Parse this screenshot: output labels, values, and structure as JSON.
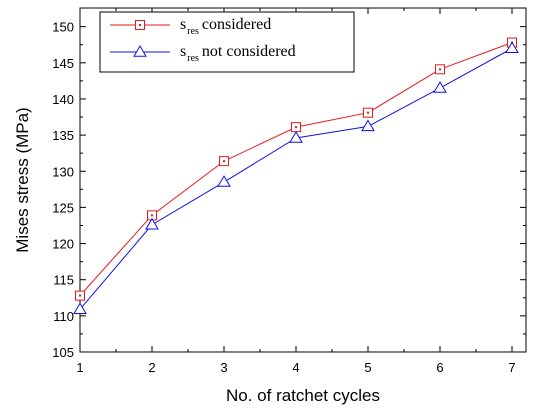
{
  "chart_data": {
    "type": "line",
    "xlabel": "No. of ratchet cycles",
    "ylabel": "Mises stress (MPa)",
    "xlim": [
      1,
      7
    ],
    "ylim": [
      105,
      152
    ],
    "x_ticks": [
      1,
      2,
      3,
      4,
      5,
      6,
      7
    ],
    "y_ticks": [
      105,
      110,
      115,
      120,
      125,
      130,
      135,
      140,
      145,
      150
    ],
    "grid": false,
    "legend_position": "top-left",
    "series": [
      {
        "name": "considered",
        "name_symbol": "s",
        "name_subscript": "res",
        "color": "#e8191b",
        "marker": "square",
        "x": [
          1,
          2,
          3,
          4,
          5,
          6,
          7
        ],
        "y": [
          112.8,
          123.9,
          131.4,
          136.1,
          138.1,
          144.1,
          147.8
        ]
      },
      {
        "name": "not considered",
        "name_symbol": "s",
        "name_subscript": "res",
        "color": "#1010e6",
        "marker": "triangle",
        "x": [
          1,
          2,
          3,
          4,
          5,
          6,
          7
        ],
        "y": [
          110.9,
          122.6,
          128.5,
          134.6,
          136.2,
          141.5,
          147.0
        ]
      }
    ]
  }
}
